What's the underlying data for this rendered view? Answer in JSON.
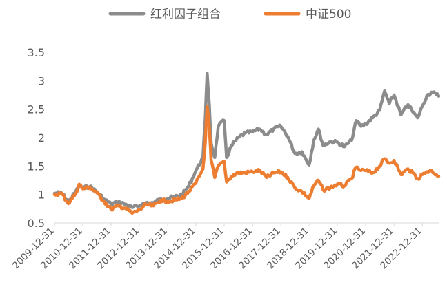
{
  "chart_data": {
    "type": "line",
    "title": "",
    "xlabel": "",
    "ylabel": "",
    "legend_position": "top",
    "grid": false,
    "ylim": [
      0.5,
      3.5
    ],
    "y_ticks": [
      "0.5",
      "1",
      "1.5",
      "2",
      "2.5",
      "3",
      "3.5"
    ],
    "x_range": [
      "2009-12-31",
      "2023-07-31"
    ],
    "x_ticks": [
      "2009-12-31",
      "2010-12-31",
      "2011-12-31",
      "2012-12-31",
      "2013-12-31",
      "2014-12-31",
      "2015-12-31",
      "2016-12-31",
      "2017-12-31",
      "2018-12-31",
      "2019-12-31",
      "2020-12-31",
      "2021-12-31",
      "2022-12-31"
    ],
    "series": [
      {
        "name": "红利因子组合",
        "color": "#8c8c8c",
        "points": [
          [
            "2009-12-31",
            1.02
          ],
          [
            "2010-03-31",
            1.03
          ],
          [
            "2010-06-30",
            0.87
          ],
          [
            "2010-09-30",
            1.05
          ],
          [
            "2010-11-15",
            1.16
          ],
          [
            "2010-12-31",
            1.12
          ],
          [
            "2011-03-31",
            1.14
          ],
          [
            "2011-06-30",
            1.05
          ],
          [
            "2011-09-30",
            0.92
          ],
          [
            "2011-12-31",
            0.83
          ],
          [
            "2012-03-31",
            0.87
          ],
          [
            "2012-06-30",
            0.83
          ],
          [
            "2012-09-30",
            0.77
          ],
          [
            "2012-12-31",
            0.8
          ],
          [
            "2013-03-31",
            0.86
          ],
          [
            "2013-06-30",
            0.84
          ],
          [
            "2013-09-30",
            0.93
          ],
          [
            "2013-12-31",
            0.93
          ],
          [
            "2014-03-31",
            0.96
          ],
          [
            "2014-06-30",
            1.0
          ],
          [
            "2014-09-30",
            1.15
          ],
          [
            "2014-12-31",
            1.42
          ],
          [
            "2015-03-31",
            1.65
          ],
          [
            "2015-04-30",
            2.3
          ],
          [
            "2015-05-25",
            3.13
          ],
          [
            "2015-06-20",
            2.6
          ],
          [
            "2015-07-15",
            1.9
          ],
          [
            "2015-08-31",
            1.65
          ],
          [
            "2015-10-15",
            2.2
          ],
          [
            "2015-12-31",
            2.3
          ],
          [
            "2016-01-31",
            1.65
          ],
          [
            "2016-03-31",
            1.85
          ],
          [
            "2016-06-30",
            2.0
          ],
          [
            "2016-09-30",
            2.08
          ],
          [
            "2016-12-31",
            2.1
          ],
          [
            "2017-03-31",
            2.15
          ],
          [
            "2017-06-30",
            2.05
          ],
          [
            "2017-09-30",
            2.15
          ],
          [
            "2017-12-31",
            2.2
          ],
          [
            "2018-03-31",
            2.02
          ],
          [
            "2018-06-30",
            1.72
          ],
          [
            "2018-09-30",
            1.75
          ],
          [
            "2018-12-31",
            1.52
          ],
          [
            "2019-02-28",
            1.95
          ],
          [
            "2019-04-30",
            2.15
          ],
          [
            "2019-06-30",
            1.86
          ],
          [
            "2019-09-30",
            1.93
          ],
          [
            "2019-12-31",
            1.92
          ],
          [
            "2020-03-31",
            1.84
          ],
          [
            "2020-06-30",
            1.95
          ],
          [
            "2020-08-31",
            2.3
          ],
          [
            "2020-10-31",
            2.2
          ],
          [
            "2020-12-31",
            2.24
          ],
          [
            "2021-03-31",
            2.35
          ],
          [
            "2021-06-30",
            2.48
          ],
          [
            "2021-08-31",
            2.82
          ],
          [
            "2021-10-31",
            2.6
          ],
          [
            "2021-12-31",
            2.75
          ],
          [
            "2022-03-31",
            2.4
          ],
          [
            "2022-06-30",
            2.58
          ],
          [
            "2022-08-31",
            2.45
          ],
          [
            "2022-10-31",
            2.35
          ],
          [
            "2022-12-31",
            2.55
          ],
          [
            "2023-02-28",
            2.74
          ],
          [
            "2023-04-30",
            2.8
          ],
          [
            "2023-06-30",
            2.76
          ],
          [
            "2023-07-31",
            2.73
          ]
        ]
      },
      {
        "name": "中证500",
        "color": "#ed7d31",
        "points": [
          [
            "2009-12-31",
            1.0
          ],
          [
            "2010-03-31",
            1.02
          ],
          [
            "2010-06-30",
            0.84
          ],
          [
            "2010-09-30",
            1.02
          ],
          [
            "2010-11-15",
            1.18
          ],
          [
            "2010-12-31",
            1.1
          ],
          [
            "2011-03-31",
            1.13
          ],
          [
            "2011-06-30",
            1.03
          ],
          [
            "2011-09-30",
            0.88
          ],
          [
            "2011-12-31",
            0.74
          ],
          [
            "2012-03-31",
            0.8
          ],
          [
            "2012-06-30",
            0.76
          ],
          [
            "2012-09-30",
            0.67
          ],
          [
            "2012-12-31",
            0.73
          ],
          [
            "2013-03-31",
            0.82
          ],
          [
            "2013-06-30",
            0.8
          ],
          [
            "2013-09-30",
            0.9
          ],
          [
            "2013-12-31",
            0.88
          ],
          [
            "2014-03-31",
            0.9
          ],
          [
            "2014-06-30",
            0.93
          ],
          [
            "2014-09-30",
            1.05
          ],
          [
            "2014-12-31",
            1.2
          ],
          [
            "2015-03-31",
            1.45
          ],
          [
            "2015-04-30",
            1.9
          ],
          [
            "2015-05-25",
            2.55
          ],
          [
            "2015-06-20",
            2.2
          ],
          [
            "2015-07-15",
            1.6
          ],
          [
            "2015-08-31",
            1.3
          ],
          [
            "2015-10-15",
            1.5
          ],
          [
            "2015-12-31",
            1.58
          ],
          [
            "2016-01-31",
            1.22
          ],
          [
            "2016-03-31",
            1.32
          ],
          [
            "2016-06-30",
            1.38
          ],
          [
            "2016-09-30",
            1.38
          ],
          [
            "2016-12-31",
            1.4
          ],
          [
            "2017-03-31",
            1.42
          ],
          [
            "2017-06-30",
            1.3
          ],
          [
            "2017-09-30",
            1.38
          ],
          [
            "2017-12-31",
            1.4
          ],
          [
            "2018-03-31",
            1.3
          ],
          [
            "2018-06-30",
            1.12
          ],
          [
            "2018-09-30",
            1.05
          ],
          [
            "2018-12-31",
            0.93
          ],
          [
            "2019-02-28",
            1.15
          ],
          [
            "2019-04-30",
            1.25
          ],
          [
            "2019-06-30",
            1.08
          ],
          [
            "2019-09-30",
            1.12
          ],
          [
            "2019-12-31",
            1.18
          ],
          [
            "2020-03-31",
            1.15
          ],
          [
            "2020-06-30",
            1.28
          ],
          [
            "2020-08-31",
            1.48
          ],
          [
            "2020-10-31",
            1.42
          ],
          [
            "2020-12-31",
            1.42
          ],
          [
            "2021-03-31",
            1.38
          ],
          [
            "2021-06-30",
            1.5
          ],
          [
            "2021-08-31",
            1.63
          ],
          [
            "2021-10-31",
            1.55
          ],
          [
            "2021-12-31",
            1.6
          ],
          [
            "2022-03-31",
            1.35
          ],
          [
            "2022-06-30",
            1.45
          ],
          [
            "2022-08-31",
            1.38
          ],
          [
            "2022-10-31",
            1.28
          ],
          [
            "2022-12-31",
            1.35
          ],
          [
            "2023-02-28",
            1.4
          ],
          [
            "2023-04-30",
            1.42
          ],
          [
            "2023-06-30",
            1.35
          ],
          [
            "2023-07-31",
            1.32
          ]
        ]
      }
    ]
  }
}
